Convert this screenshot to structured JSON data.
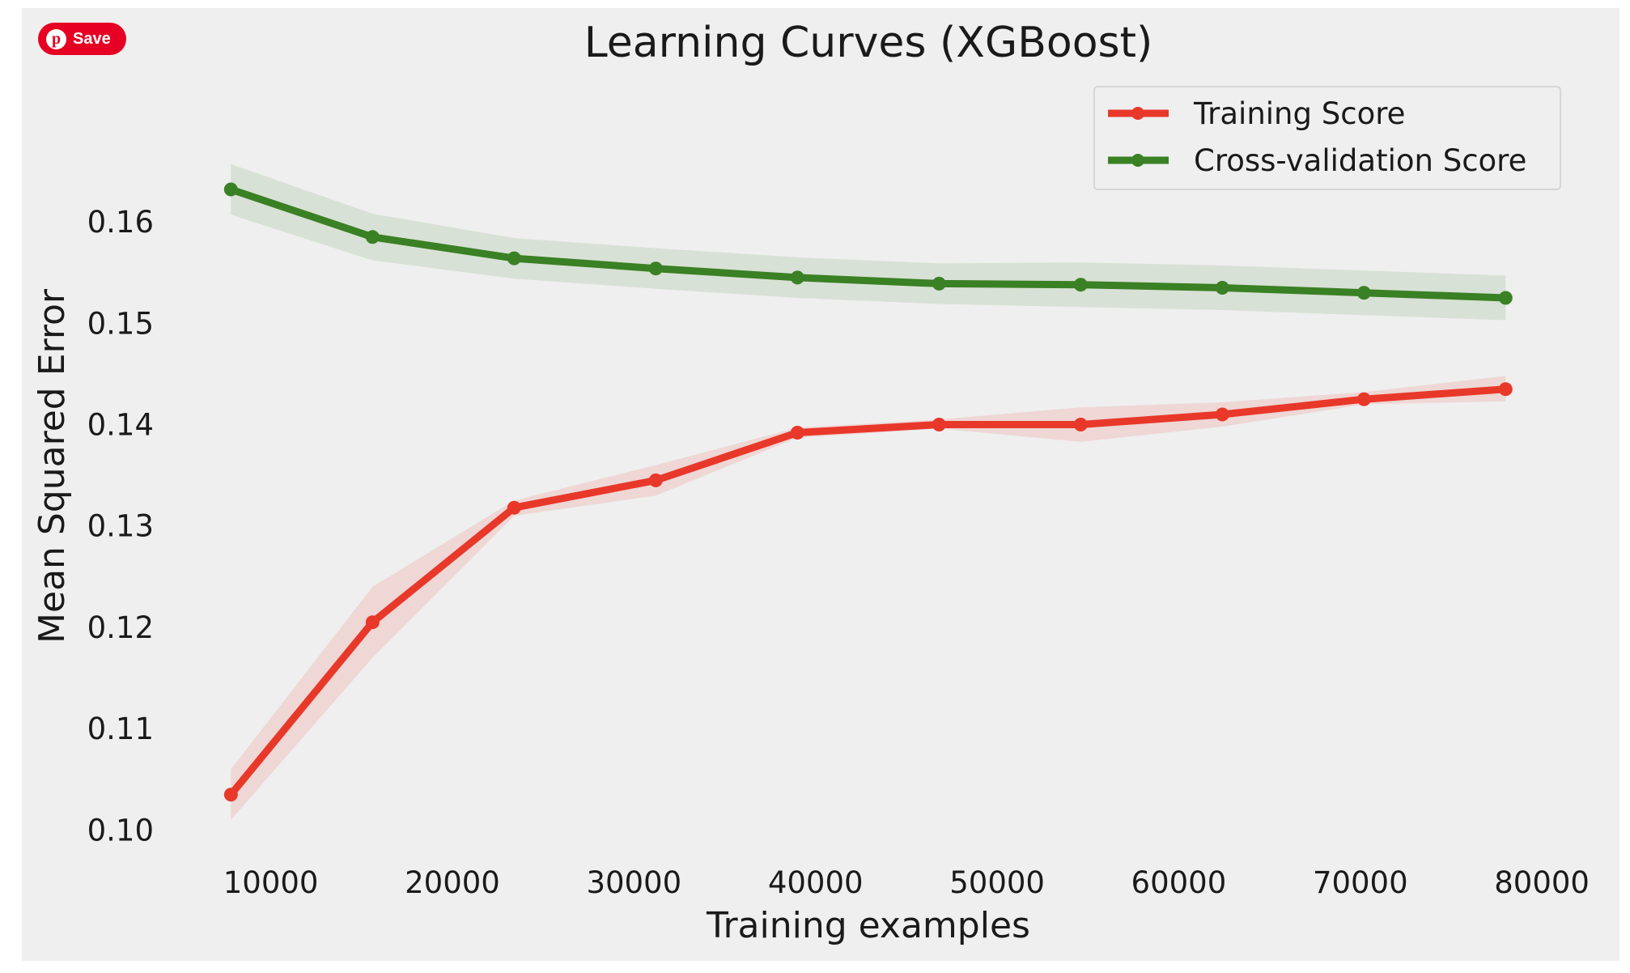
{
  "pin_button": {
    "label": "Save",
    "icon": "pinterest-icon",
    "color": "#e60023"
  },
  "chart_data": {
    "type": "line",
    "title": "Learning Curves (XGBoost)",
    "xlabel": "Training examples",
    "ylabel": "Mean Squared Error",
    "x": [
      7800,
      15600,
      23400,
      31200,
      39000,
      46800,
      54600,
      62400,
      70200,
      78000
    ],
    "xlim": [
      4000,
      82000
    ],
    "ylim": [
      0.097,
      0.1735
    ],
    "xticks": [
      10000,
      20000,
      30000,
      40000,
      50000,
      60000,
      70000,
      80000
    ],
    "yticks": [
      0.1,
      0.11,
      0.12,
      0.13,
      0.14,
      0.15,
      0.16
    ],
    "xtick_labels": [
      "10000",
      "20000",
      "30000",
      "40000",
      "50000",
      "60000",
      "70000",
      "80000"
    ],
    "ytick_labels": [
      "0.10",
      "0.11",
      "0.12",
      "0.13",
      "0.14",
      "0.15",
      "0.16"
    ],
    "grid": false,
    "legend_position": "top-right",
    "background": "#efefef",
    "series": [
      {
        "name": "Training Score",
        "color": "#e8382a",
        "band_color": "#e8382a",
        "values": [
          0.1035,
          0.1205,
          0.1318,
          0.1345,
          0.1392,
          0.14,
          0.14,
          0.141,
          0.1425,
          0.1435
        ],
        "lower": [
          0.101,
          0.117,
          0.131,
          0.133,
          0.1387,
          0.1396,
          0.1383,
          0.1398,
          0.142,
          0.1423
        ],
        "upper": [
          0.106,
          0.124,
          0.1325,
          0.136,
          0.1397,
          0.1405,
          0.1417,
          0.1422,
          0.1432,
          0.1448
        ]
      },
      {
        "name": "Cross-validation Score",
        "color": "#3a8024",
        "band_color": "#3a8024",
        "values": [
          0.1632,
          0.1585,
          0.1564,
          0.1554,
          0.1545,
          0.1539,
          0.1538,
          0.1535,
          0.153,
          0.1525
        ],
        "lower": [
          0.1607,
          0.1562,
          0.1544,
          0.1534,
          0.1525,
          0.1519,
          0.1516,
          0.1513,
          0.1508,
          0.1503
        ],
        "upper": [
          0.1657,
          0.1608,
          0.1584,
          0.1574,
          0.1565,
          0.1559,
          0.156,
          0.1557,
          0.1552,
          0.1547
        ]
      }
    ]
  }
}
